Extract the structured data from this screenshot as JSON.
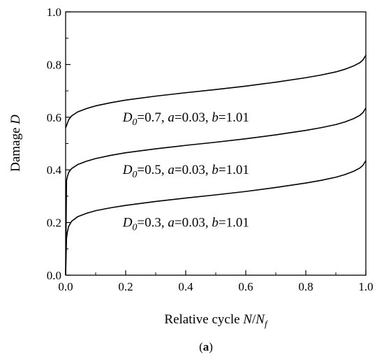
{
  "chart_data": {
    "type": "line",
    "title": "",
    "caption": {
      "open": "(",
      "letter": "a",
      "close": ")"
    },
    "xlabel": {
      "text": "Relative cycle ",
      "italic": "N",
      "slash": "/",
      "italic2": "N",
      "sub": "f"
    },
    "ylabel": {
      "text": "Damage ",
      "italic": "D"
    },
    "xlim": [
      0.0,
      1.0
    ],
    "ylim": [
      0.0,
      1.0
    ],
    "xticks": [
      "0.0",
      "0.2",
      "0.4",
      "0.6",
      "0.8",
      "1.0"
    ],
    "yticks": [
      "0.0",
      "0.2",
      "0.4",
      "0.6",
      "0.8",
      "1.0"
    ],
    "grid": false,
    "legend": "none",
    "series": [
      {
        "x": [
          0.0,
          0.002,
          0.005,
          0.01,
          0.02,
          0.04,
          0.07,
          0.1,
          0.15,
          0.2,
          0.3,
          0.4,
          0.5,
          0.6,
          0.7,
          0.8,
          0.85,
          0.9,
          0.93,
          0.96,
          0.98,
          0.99,
          1.0
        ],
        "y": [
          0.56,
          0.565,
          0.575,
          0.59,
          0.605,
          0.62,
          0.633,
          0.643,
          0.655,
          0.665,
          0.68,
          0.693,
          0.705,
          0.718,
          0.733,
          0.75,
          0.76,
          0.772,
          0.782,
          0.795,
          0.807,
          0.817,
          0.835
        ]
      },
      {
        "x": [
          0.0,
          0.003,
          0.006,
          0.01,
          0.02,
          0.04,
          0.07,
          0.1,
          0.15,
          0.2,
          0.3,
          0.4,
          0.5,
          0.6,
          0.7,
          0.8,
          0.85,
          0.9,
          0.93,
          0.96,
          0.98,
          0.99,
          1.0
        ],
        "y": [
          0.0,
          0.36,
          0.375,
          0.39,
          0.405,
          0.42,
          0.433,
          0.443,
          0.455,
          0.465,
          0.48,
          0.493,
          0.505,
          0.518,
          0.533,
          0.55,
          0.56,
          0.572,
          0.582,
          0.595,
          0.607,
          0.617,
          0.635
        ]
      },
      {
        "x": [
          0.0,
          0.003,
          0.006,
          0.01,
          0.02,
          0.04,
          0.07,
          0.1,
          0.15,
          0.2,
          0.3,
          0.4,
          0.5,
          0.6,
          0.7,
          0.8,
          0.85,
          0.9,
          0.93,
          0.96,
          0.98,
          0.99,
          1.0
        ],
        "y": [
          0.0,
          0.14,
          0.165,
          0.185,
          0.205,
          0.222,
          0.235,
          0.245,
          0.256,
          0.265,
          0.28,
          0.293,
          0.305,
          0.318,
          0.333,
          0.35,
          0.36,
          0.372,
          0.382,
          0.395,
          0.407,
          0.417,
          0.435
        ]
      }
    ],
    "annotations": [
      {
        "d": "D",
        "sub": "0",
        "rest1": "=0.7, ",
        "a": "a",
        "rest2": "=0.03, ",
        "b": "b",
        "rest3": "=1.01",
        "x": 0.19,
        "y": 0.6
      },
      {
        "d": "D",
        "sub": "0",
        "rest1": "=0.5, ",
        "a": "a",
        "rest2": "=0.03, ",
        "b": "b",
        "rest3": "=1.01",
        "x": 0.19,
        "y": 0.4
      },
      {
        "d": "D",
        "sub": "0",
        "rest1": "=0.3, ",
        "a": "a",
        "rest2": "=0.03, ",
        "b": "b",
        "rest3": "=1.01",
        "x": 0.19,
        "y": 0.2
      }
    ]
  }
}
